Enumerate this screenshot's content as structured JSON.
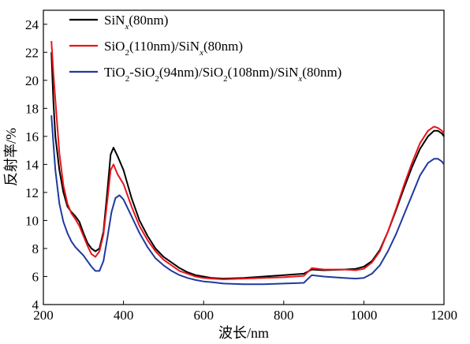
{
  "chart_data": {
    "type": "line",
    "title": "",
    "xlabel": "波长/nm",
    "ylabel": "反射率/%",
    "xlim": [
      200,
      1200
    ],
    "ylim": [
      4,
      25
    ],
    "xticks": [
      "200",
      "400",
      "600",
      "800",
      "1000",
      "1200"
    ],
    "yticks": [
      "4",
      "6",
      "8",
      "10",
      "12",
      "14",
      "16",
      "18",
      "20",
      "22",
      "24"
    ],
    "legend_position": "top-center",
    "series": [
      {
        "name": "SiN_x(80nm)",
        "color": "#000000",
        "points": [
          [
            220,
            22.0
          ],
          [
            225,
            18.5
          ],
          [
            230,
            16.0
          ],
          [
            240,
            13.6
          ],
          [
            250,
            12.0
          ],
          [
            260,
            11.0
          ],
          [
            270,
            10.6
          ],
          [
            280,
            10.3
          ],
          [
            290,
            9.9
          ],
          [
            300,
            9.1
          ],
          [
            310,
            8.4
          ],
          [
            320,
            8.0
          ],
          [
            330,
            7.8
          ],
          [
            340,
            8.0
          ],
          [
            350,
            9.2
          ],
          [
            360,
            12.2
          ],
          [
            368,
            14.7
          ],
          [
            375,
            15.2
          ],
          [
            385,
            14.6
          ],
          [
            400,
            13.6
          ],
          [
            420,
            11.6
          ],
          [
            440,
            10.0
          ],
          [
            460,
            8.9
          ],
          [
            480,
            8.0
          ],
          [
            500,
            7.4
          ],
          [
            520,
            7.0
          ],
          [
            540,
            6.6
          ],
          [
            560,
            6.3
          ],
          [
            580,
            6.1
          ],
          [
            600,
            6.0
          ],
          [
            620,
            5.9
          ],
          [
            650,
            5.85
          ],
          [
            700,
            5.9
          ],
          [
            750,
            6.0
          ],
          [
            800,
            6.1
          ],
          [
            850,
            6.2
          ],
          [
            870,
            6.5
          ],
          [
            900,
            6.45
          ],
          [
            950,
            6.5
          ],
          [
            980,
            6.55
          ],
          [
            1000,
            6.7
          ],
          [
            1020,
            7.1
          ],
          [
            1040,
            7.9
          ],
          [
            1060,
            9.2
          ],
          [
            1080,
            10.7
          ],
          [
            1100,
            12.3
          ],
          [
            1120,
            13.8
          ],
          [
            1140,
            15.1
          ],
          [
            1160,
            16.0
          ],
          [
            1175,
            16.4
          ],
          [
            1185,
            16.4
          ],
          [
            1195,
            16.2
          ],
          [
            1200,
            16.0
          ]
        ]
      },
      {
        "name": "SiO_2(110nm)/SiN_x(80nm)",
        "color": "#e8151b",
        "points": [
          [
            220,
            22.8
          ],
          [
            225,
            20.5
          ],
          [
            230,
            18.6
          ],
          [
            240,
            14.8
          ],
          [
            250,
            12.5
          ],
          [
            260,
            11.2
          ],
          [
            270,
            10.5
          ],
          [
            280,
            10.1
          ],
          [
            290,
            9.6
          ],
          [
            300,
            8.9
          ],
          [
            310,
            8.2
          ],
          [
            320,
            7.6
          ],
          [
            330,
            7.4
          ],
          [
            340,
            7.8
          ],
          [
            350,
            9.0
          ],
          [
            360,
            11.5
          ],
          [
            368,
            13.6
          ],
          [
            375,
            14.0
          ],
          [
            385,
            13.3
          ],
          [
            400,
            12.6
          ],
          [
            420,
            11.0
          ],
          [
            440,
            9.6
          ],
          [
            460,
            8.6
          ],
          [
            480,
            7.8
          ],
          [
            500,
            7.2
          ],
          [
            520,
            6.8
          ],
          [
            540,
            6.4
          ],
          [
            560,
            6.2
          ],
          [
            580,
            6.0
          ],
          [
            600,
            5.9
          ],
          [
            620,
            5.85
          ],
          [
            650,
            5.8
          ],
          [
            700,
            5.85
          ],
          [
            750,
            5.9
          ],
          [
            800,
            5.95
          ],
          [
            850,
            6.05
          ],
          [
            870,
            6.6
          ],
          [
            900,
            6.5
          ],
          [
            950,
            6.5
          ],
          [
            980,
            6.45
          ],
          [
            1000,
            6.55
          ],
          [
            1020,
            7.0
          ],
          [
            1040,
            7.8
          ],
          [
            1060,
            9.2
          ],
          [
            1080,
            10.8
          ],
          [
            1100,
            12.5
          ],
          [
            1120,
            14.1
          ],
          [
            1140,
            15.5
          ],
          [
            1160,
            16.4
          ],
          [
            1175,
            16.7
          ],
          [
            1185,
            16.6
          ],
          [
            1195,
            16.4
          ],
          [
            1200,
            16.2
          ]
        ]
      },
      {
        "name": "TiO_2-SiO_2(94nm)/SiO_2(108nm)/SiN_x(80nm)",
        "color": "#1f3a9e",
        "points": [
          [
            220,
            17.5
          ],
          [
            225,
            15.5
          ],
          [
            230,
            13.6
          ],
          [
            240,
            11.2
          ],
          [
            250,
            9.9
          ],
          [
            260,
            9.1
          ],
          [
            270,
            8.5
          ],
          [
            280,
            8.1
          ],
          [
            290,
            7.8
          ],
          [
            300,
            7.5
          ],
          [
            310,
            7.1
          ],
          [
            320,
            6.7
          ],
          [
            330,
            6.4
          ],
          [
            340,
            6.4
          ],
          [
            350,
            7.1
          ],
          [
            360,
            8.8
          ],
          [
            370,
            10.6
          ],
          [
            380,
            11.6
          ],
          [
            390,
            11.8
          ],
          [
            400,
            11.5
          ],
          [
            420,
            10.3
          ],
          [
            440,
            9.1
          ],
          [
            460,
            8.1
          ],
          [
            480,
            7.3
          ],
          [
            500,
            6.8
          ],
          [
            520,
            6.4
          ],
          [
            540,
            6.1
          ],
          [
            560,
            5.9
          ],
          [
            580,
            5.75
          ],
          [
            600,
            5.65
          ],
          [
            620,
            5.6
          ],
          [
            650,
            5.5
          ],
          [
            700,
            5.45
          ],
          [
            750,
            5.45
          ],
          [
            800,
            5.5
          ],
          [
            850,
            5.55
          ],
          [
            870,
            6.1
          ],
          [
            900,
            6.0
          ],
          [
            950,
            5.9
          ],
          [
            980,
            5.85
          ],
          [
            1000,
            5.9
          ],
          [
            1020,
            6.2
          ],
          [
            1040,
            6.8
          ],
          [
            1060,
            7.8
          ],
          [
            1080,
            9.0
          ],
          [
            1100,
            10.4
          ],
          [
            1120,
            11.8
          ],
          [
            1140,
            13.2
          ],
          [
            1160,
            14.1
          ],
          [
            1175,
            14.4
          ],
          [
            1185,
            14.4
          ],
          [
            1195,
            14.2
          ],
          [
            1200,
            14.0
          ]
        ]
      }
    ]
  }
}
